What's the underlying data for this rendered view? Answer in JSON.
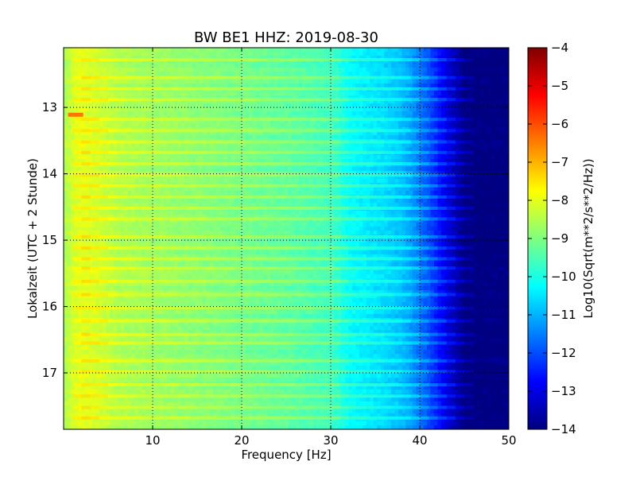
{
  "chart_data": {
    "type": "heatmap",
    "title": "BW BE1 HHZ: 2019-08-30",
    "xlabel": "Frequency [Hz]",
    "ylabel": "Lokalzeit (UTC + 2 Stunde)",
    "colorbar_label": "Log10(Sqrt(m**2/s**2/Hz))",
    "xlim": [
      0,
      50
    ],
    "ylim": [
      12.1,
      17.85
    ],
    "y_inverted": true,
    "x_ticks": [
      10,
      20,
      30,
      40,
      50
    ],
    "x_tick_labels": [
      "10",
      "20",
      "30",
      "40",
      "50"
    ],
    "y_ticks": [
      13,
      14,
      15,
      16,
      17
    ],
    "y_tick_labels": [
      "13",
      "14",
      "15",
      "16",
      "17"
    ],
    "colorbar_range": [
      -14,
      -4
    ],
    "colorbar_ticks": [
      -4,
      -5,
      -6,
      -7,
      -8,
      -9,
      -10,
      -11,
      -12,
      -13,
      -14
    ],
    "colorbar_tick_labels": [
      "−4",
      "−5",
      "−6",
      "−7",
      "−8",
      "−9",
      "−10",
      "−11",
      "−12",
      "−13",
      "−14"
    ],
    "colormap": "jet",
    "grid": true,
    "spectrum_profile": {
      "frequency": [
        0,
        1,
        2,
        4,
        6,
        10,
        15,
        20,
        25,
        28,
        30,
        31,
        32,
        34,
        36,
        38,
        39,
        40,
        41,
        42,
        43,
        44,
        45,
        50
      ],
      "log_amplitude": [
        -8.6,
        -8.2,
        -8.0,
        -8.2,
        -8.5,
        -8.7,
        -8.9,
        -9.1,
        -9.3,
        -9.5,
        -9.6,
        -9.9,
        -10.2,
        -10.4,
        -10.6,
        -10.9,
        -11.2,
        -11.6,
        -12.0,
        -12.5,
        -13.0,
        -13.5,
        -14.0,
        -14.0
      ]
    }
  }
}
